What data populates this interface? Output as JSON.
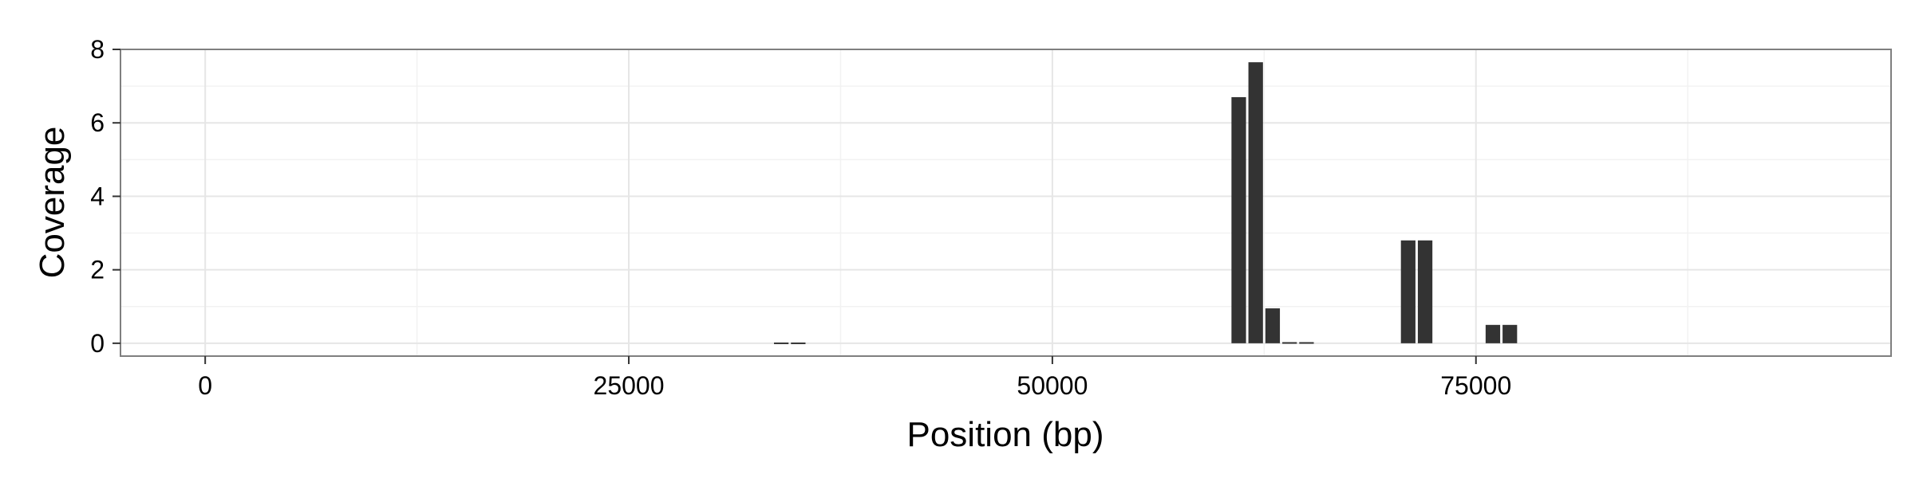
{
  "chart_data": {
    "type": "bar",
    "title": "",
    "xlabel": "Position (bp)",
    "ylabel": "Coverage",
    "xlim": [
      -5000,
      99500
    ],
    "ylim": [
      -0.35,
      8
    ],
    "x_ticks": [
      0,
      25000,
      50000,
      75000
    ],
    "x_tick_labels": [
      "0",
      "25000",
      "50000",
      "75000"
    ],
    "y_ticks": [
      0,
      2,
      4,
      6,
      8
    ],
    "y_tick_labels": [
      "0",
      "2",
      "4",
      "6",
      "8"
    ],
    "grid": true,
    "legend": "none",
    "bin_width": 1000,
    "series": [
      {
        "x": [
          34000,
          35000,
          61000,
          62000,
          63000,
          64000,
          65000,
          71000,
          72000,
          76000,
          77000
        ],
        "values": [
          0.02,
          0.02,
          6.7,
          7.65,
          0.95,
          0.03,
          0.03,
          2.8,
          2.8,
          0.5,
          0.5
        ]
      }
    ],
    "colors": {
      "bar": "#333333",
      "grid_major": "#e6e6e6",
      "grid_minor": "#f2f2f2",
      "frame": "#7f7f7f"
    }
  }
}
